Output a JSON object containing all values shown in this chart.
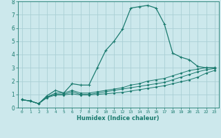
{
  "xlabel": "Humidex (Indice chaleur)",
  "xlim": [
    -0.5,
    23.5
  ],
  "ylim": [
    0,
    8
  ],
  "xtick_labels": [
    "0",
    "1",
    "2",
    "3",
    "4",
    "5",
    "6",
    "7",
    "8",
    "9",
    "10",
    "11",
    "12",
    "13",
    "14",
    "15",
    "16",
    "17",
    "18",
    "19",
    "20",
    "21",
    "22",
    "23"
  ],
  "ytick_labels": [
    "0",
    "1",
    "2",
    "3",
    "4",
    "5",
    "6",
    "7",
    "8"
  ],
  "background_color": "#cce8ec",
  "grid_color": "#aacfd5",
  "line_color": "#1a7a6e",
  "lines": [
    [
      0.6,
      0.5,
      0.3,
      0.9,
      1.3,
      1.1,
      1.8,
      1.7,
      1.7,
      3.0,
      4.3,
      5.0,
      5.9,
      7.5,
      7.6,
      7.7,
      7.5,
      6.3,
      4.1,
      3.8,
      3.6,
      3.1,
      3.0,
      3.0
    ],
    [
      0.6,
      0.5,
      0.3,
      0.8,
      1.1,
      1.1,
      1.3,
      1.1,
      1.1,
      1.2,
      1.3,
      1.4,
      1.5,
      1.7,
      1.8,
      2.0,
      2.1,
      2.2,
      2.4,
      2.6,
      2.8,
      2.9,
      3.0,
      3.0
    ],
    [
      0.6,
      0.5,
      0.3,
      0.8,
      1.0,
      1.0,
      1.2,
      1.0,
      1.0,
      1.1,
      1.2,
      1.3,
      1.4,
      1.5,
      1.6,
      1.7,
      1.8,
      1.9,
      2.1,
      2.3,
      2.5,
      2.7,
      2.85,
      2.95
    ],
    [
      0.6,
      0.5,
      0.3,
      0.75,
      0.95,
      0.95,
      1.05,
      0.95,
      0.95,
      1.0,
      1.05,
      1.1,
      1.15,
      1.25,
      1.35,
      1.45,
      1.55,
      1.65,
      1.8,
      1.95,
      2.1,
      2.3,
      2.6,
      2.8
    ]
  ]
}
